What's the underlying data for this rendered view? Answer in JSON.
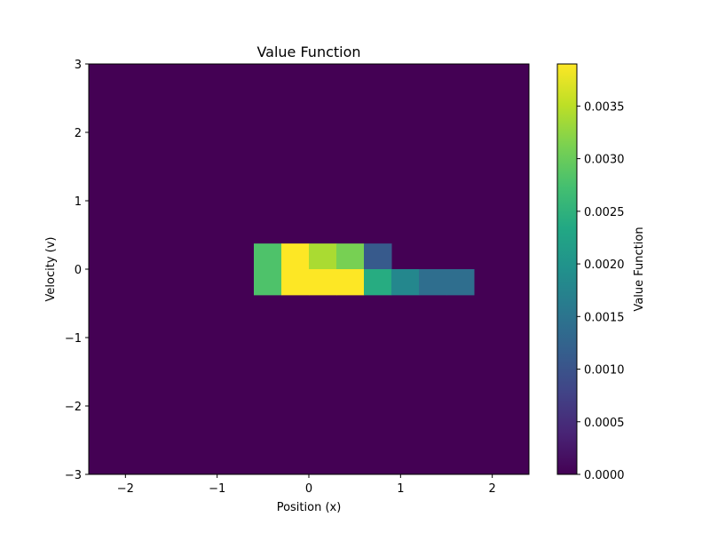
{
  "chart_data": {
    "type": "heatmap",
    "title": "Value Function",
    "xlabel": "Position (x)",
    "ylabel": "Velocity (v)",
    "xlim": [
      -2.4,
      2.4
    ],
    "ylim": [
      -3,
      3
    ],
    "xticks": [
      -2,
      -1,
      0,
      1,
      2
    ],
    "yticks": [
      -3,
      -2,
      -1,
      0,
      1,
      2,
      3
    ],
    "xtick_labels": [
      "−2",
      "−1",
      "0",
      "1",
      "2"
    ],
    "ytick_labels": [
      "−3",
      "−2",
      "−1",
      "0",
      "1",
      "2",
      "3"
    ],
    "grid": false,
    "colormap": "viridis",
    "background_value": 0.0,
    "nonzero_cells": [
      {
        "x0": -0.6,
        "x1": -0.3,
        "v0": 0.0,
        "v1": 0.375,
        "value": 0.0028
      },
      {
        "x0": -0.3,
        "x1": 0.0,
        "v0": 0.0,
        "v1": 0.375,
        "value": 0.0039
      },
      {
        "x0": 0.0,
        "x1": 0.3,
        "v0": 0.0,
        "v1": 0.375,
        "value": 0.0034
      },
      {
        "x0": 0.3,
        "x1": 0.6,
        "v0": 0.0,
        "v1": 0.375,
        "value": 0.0031
      },
      {
        "x0": 0.6,
        "x1": 0.9,
        "v0": 0.0,
        "v1": 0.375,
        "value": 0.0011
      },
      {
        "x0": -0.6,
        "x1": -0.3,
        "v0": -0.375,
        "v1": 0.0,
        "value": 0.0028
      },
      {
        "x0": -0.3,
        "x1": 0.0,
        "v0": -0.375,
        "v1": 0.0,
        "value": 0.0039
      },
      {
        "x0": 0.0,
        "x1": 0.3,
        "v0": -0.375,
        "v1": 0.0,
        "value": 0.0039
      },
      {
        "x0": 0.3,
        "x1": 0.6,
        "v0": -0.375,
        "v1": 0.0,
        "value": 0.0039
      },
      {
        "x0": 0.6,
        "x1": 0.9,
        "v0": -0.375,
        "v1": 0.0,
        "value": 0.0024
      },
      {
        "x0": 0.9,
        "x1": 1.2,
        "v0": -0.375,
        "v1": 0.0,
        "value": 0.0018
      },
      {
        "x0": 1.2,
        "x1": 1.5,
        "v0": -0.375,
        "v1": 0.0,
        "value": 0.0014
      },
      {
        "x0": 1.5,
        "x1": 1.8,
        "v0": -0.375,
        "v1": 0.0,
        "value": 0.0014
      }
    ],
    "colorbar": {
      "label": "Value Function",
      "range": [
        0.0,
        0.0039
      ],
      "ticks": [
        0.0,
        0.0005,
        0.001,
        0.0015,
        0.002,
        0.0025,
        0.003,
        0.0035
      ],
      "tick_labels": [
        "0.0000",
        "0.0005",
        "0.0010",
        "0.0015",
        "0.0020",
        "0.0025",
        "0.0030",
        "0.0035"
      ]
    }
  }
}
